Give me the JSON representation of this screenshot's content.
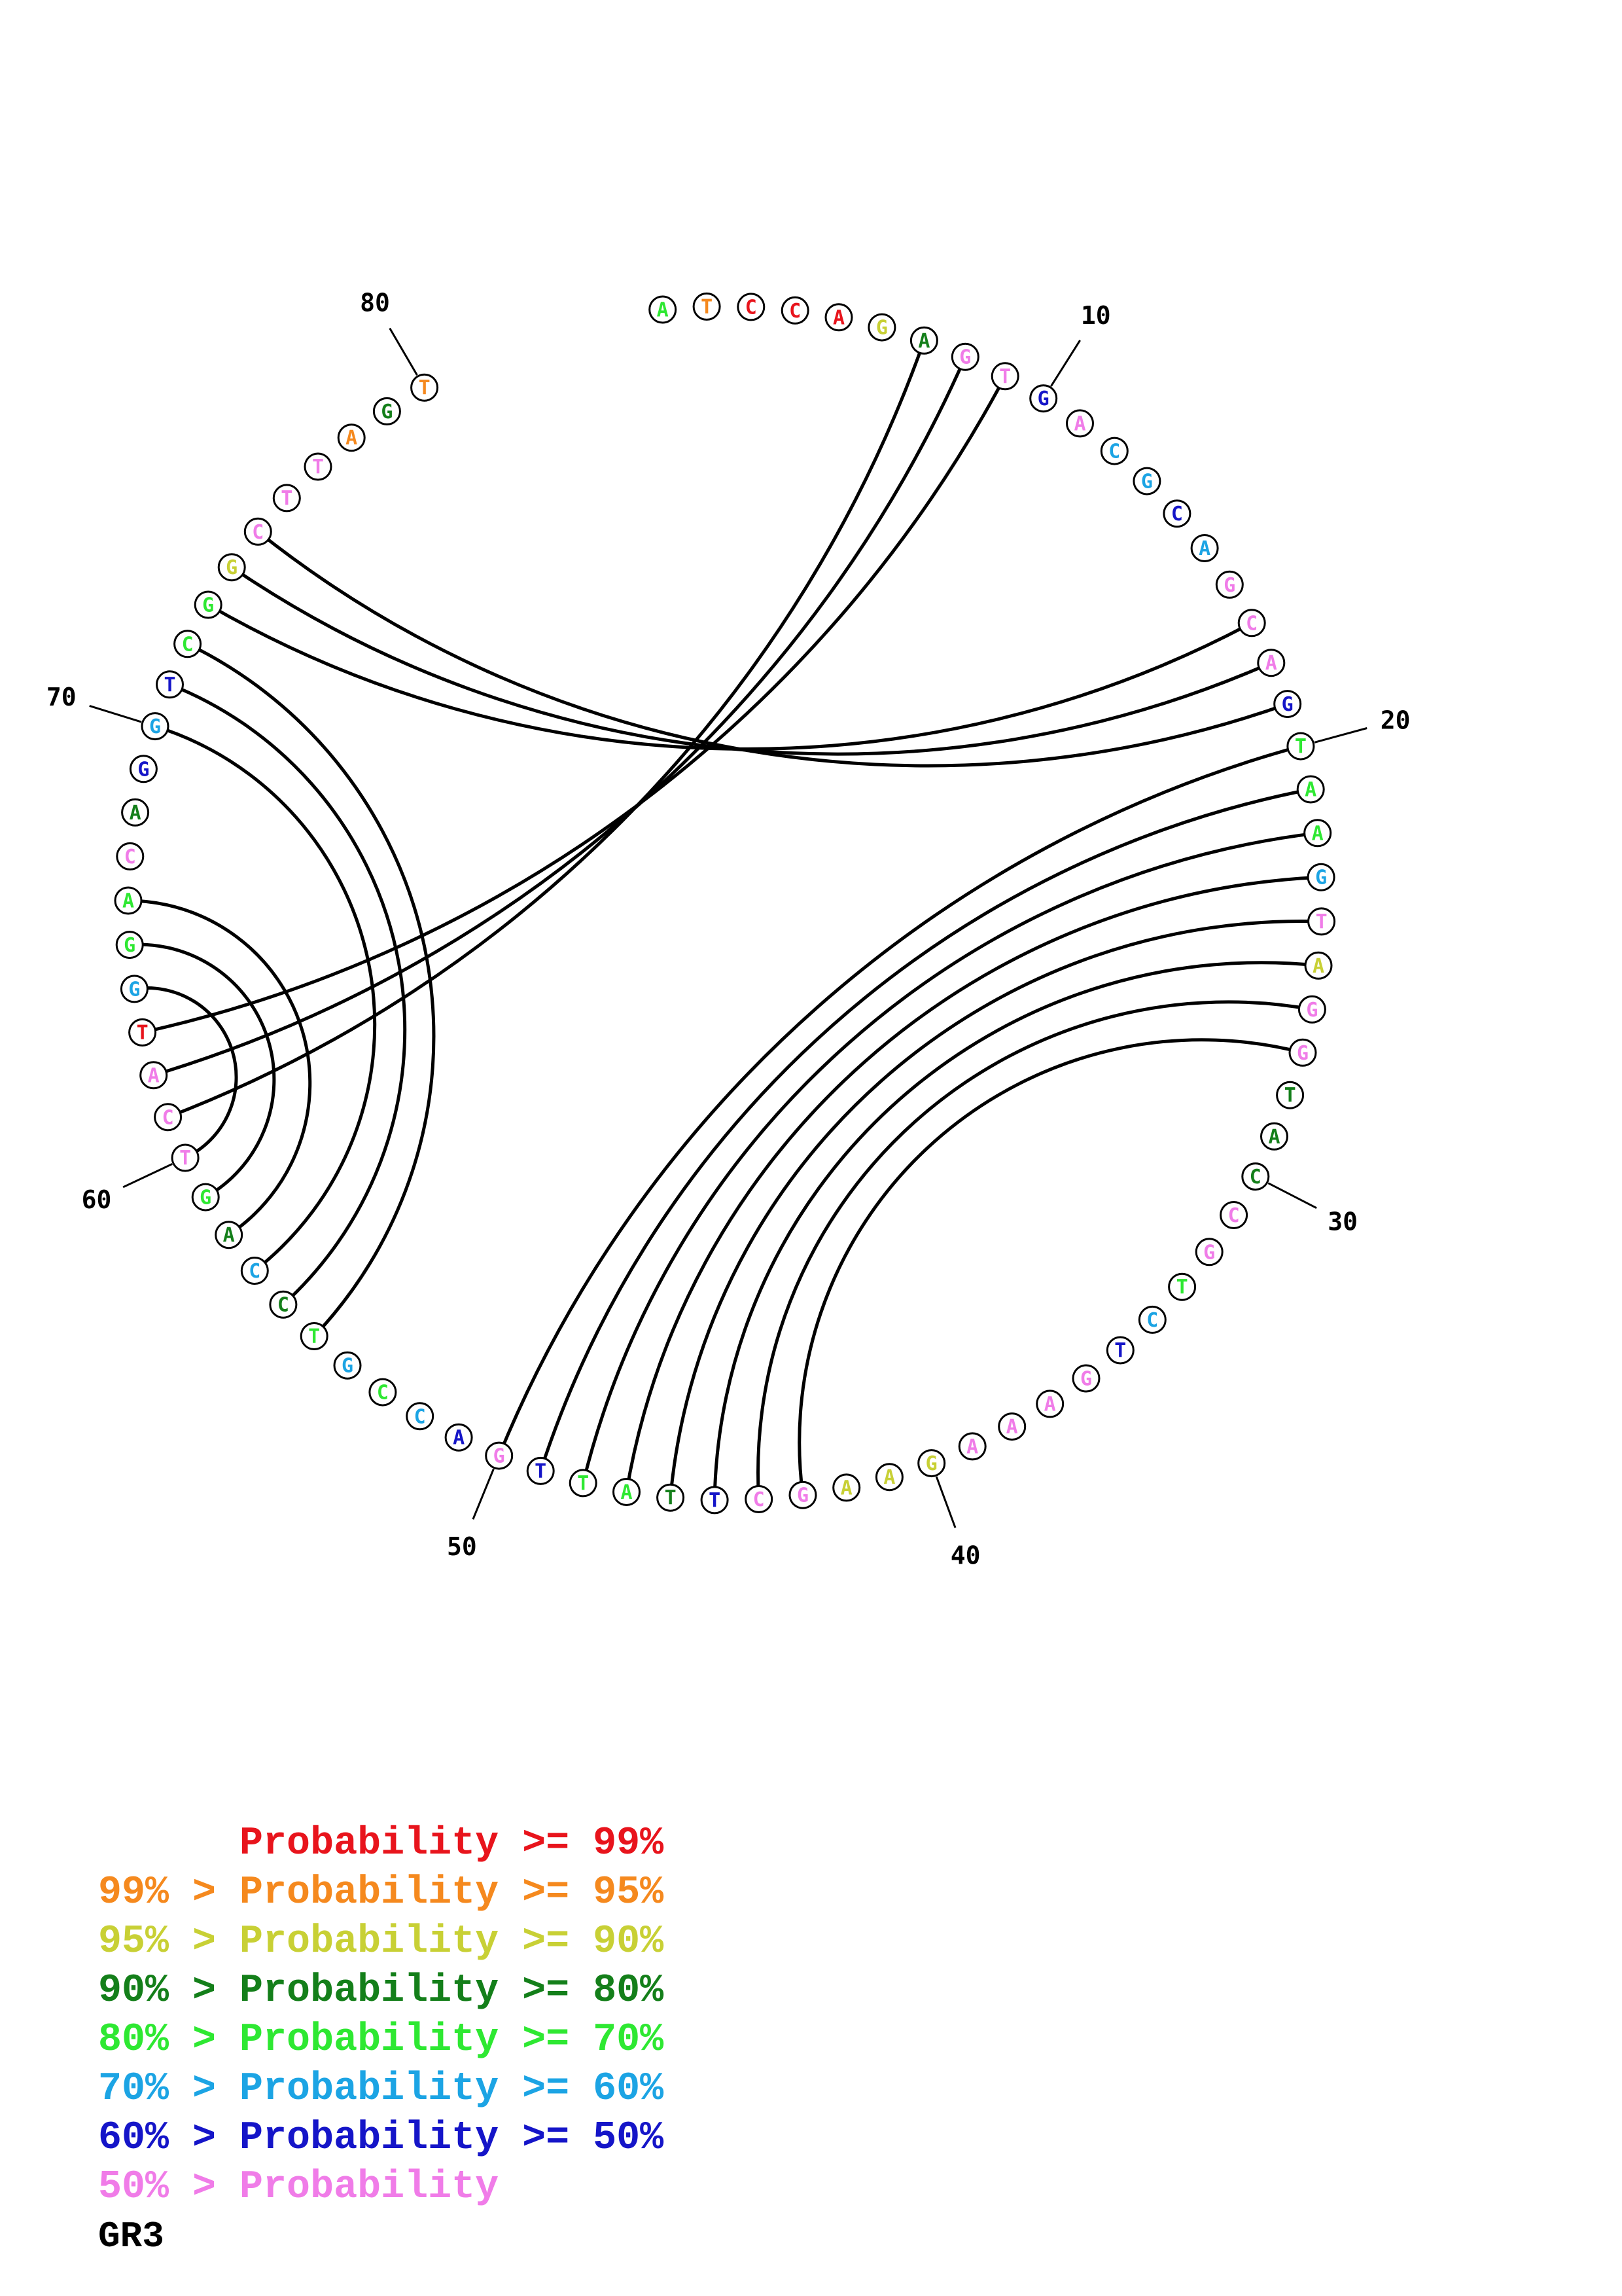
{
  "structure": {
    "name": "GR3",
    "sequence": "ATCCAGAGTGACGCAGCAGTAAGTAGGTACCGTCTGAAAGAAGCTTATTGACCGTCCAGTCATGGACAGGTCGGCTTAGT",
    "probability_levels": [
      4,
      1,
      0,
      0,
      0,
      2,
      3,
      7,
      7,
      6,
      7,
      5,
      5,
      6,
      5,
      7,
      7,
      7,
      6,
      4,
      4,
      4,
      5,
      7,
      2,
      7,
      7,
      3,
      3,
      3,
      7,
      7,
      4,
      5,
      6,
      7,
      7,
      7,
      7,
      2,
      2,
      2,
      7,
      7,
      6,
      3,
      4,
      4,
      6,
      7,
      6,
      5,
      4,
      5,
      4,
      3,
      5,
      3,
      4,
      7,
      7,
      7,
      0,
      5,
      4,
      4,
      7,
      3,
      6,
      5,
      6,
      4,
      4,
      2,
      7,
      7,
      7,
      1,
      3,
      1
    ],
    "pairs": [
      [
        7,
        61
      ],
      [
        8,
        62
      ],
      [
        9,
        63
      ],
      [
        17,
        73
      ],
      [
        18,
        74
      ],
      [
        19,
        75
      ],
      [
        20,
        50
      ],
      [
        21,
        49
      ],
      [
        22,
        48
      ],
      [
        23,
        47
      ],
      [
        24,
        46
      ],
      [
        25,
        45
      ],
      [
        26,
        44
      ],
      [
        27,
        43
      ],
      [
        55,
        72
      ],
      [
        56,
        71
      ],
      [
        57,
        70
      ],
      [
        58,
        66
      ],
      [
        59,
        65
      ],
      [
        60,
        64
      ]
    ],
    "position_labels": [
      "10",
      "20",
      "30",
      "40",
      "50",
      "60",
      "70",
      "80"
    ]
  },
  "colors": {
    "level_0": "#e8141c",
    "level_1": "#f5891e",
    "level_2": "#c8d035",
    "level_3": "#147f1a",
    "level_4": "#2ee832",
    "level_5": "#1ca4e4",
    "level_6": "#1515c8",
    "level_7": "#f07ce8"
  },
  "legend": [
    {
      "prefix": "",
      "label": "Probability",
      "suffix": ">= 99%",
      "level": 0
    },
    {
      "prefix": "99% >",
      "label": "Probability",
      "suffix": ">= 95%",
      "level": 1
    },
    {
      "prefix": "95% >",
      "label": "Probability",
      "suffix": ">= 90%",
      "level": 2
    },
    {
      "prefix": "90% >",
      "label": "Probability",
      "suffix": ">= 80%",
      "level": 3
    },
    {
      "prefix": "80% >",
      "label": "Probability",
      "suffix": ">= 70%",
      "level": 4
    },
    {
      "prefix": "70% >",
      "label": "Probability",
      "suffix": ">= 60%",
      "level": 5
    },
    {
      "prefix": "60% >",
      "label": "Probability",
      "suffix": ">= 50%",
      "level": 6
    },
    {
      "prefix": "50% >",
      "label": "Probability",
      "suffix": "",
      "level": 7
    }
  ]
}
